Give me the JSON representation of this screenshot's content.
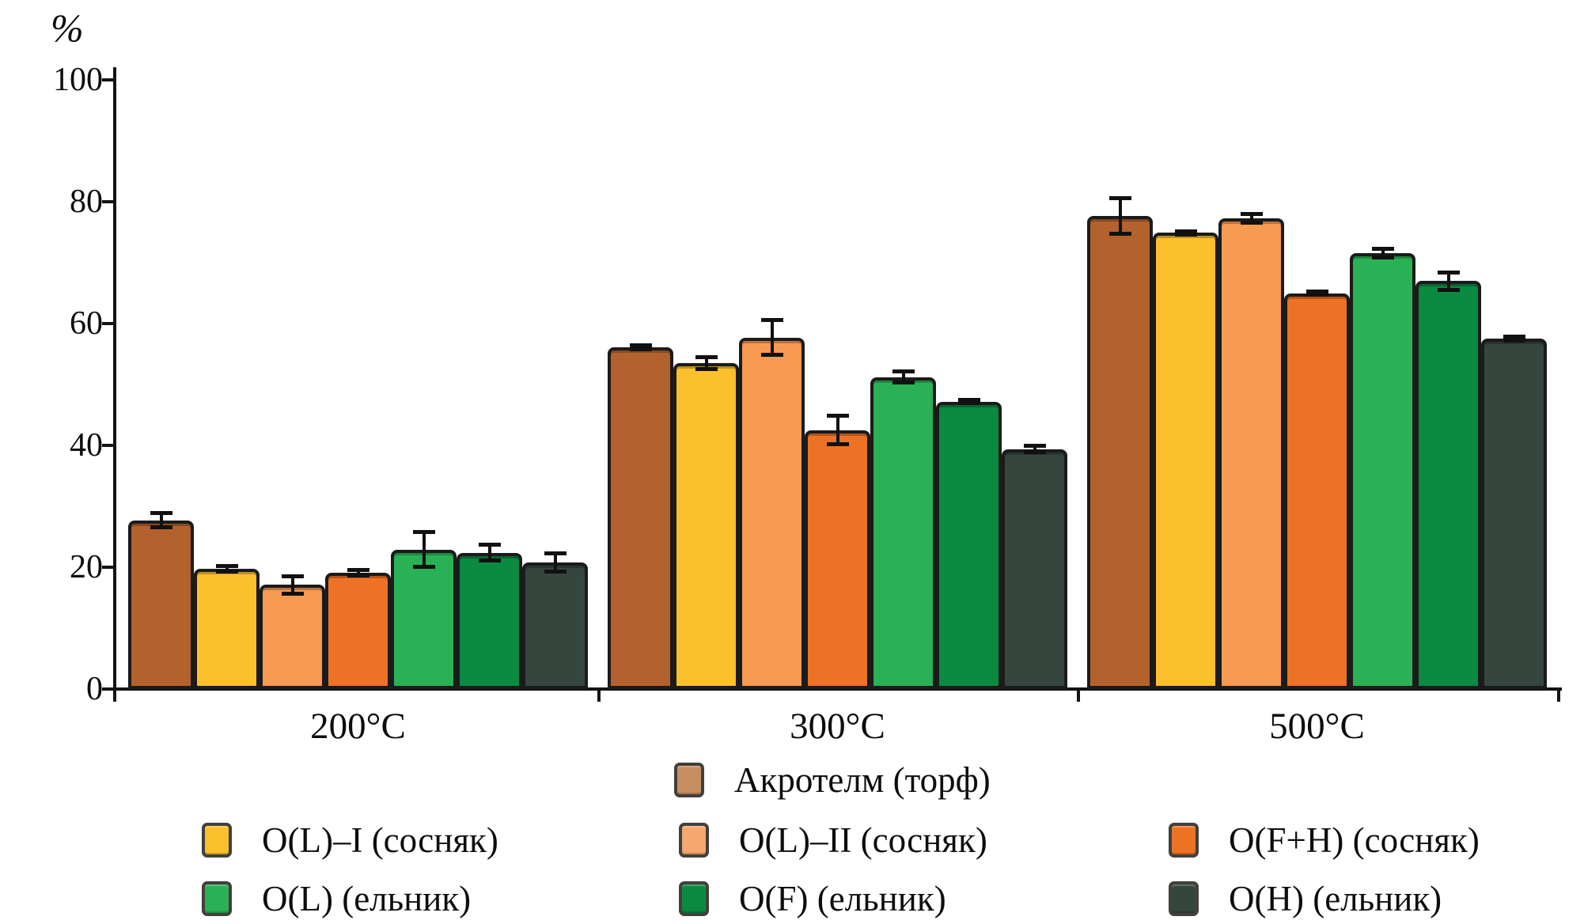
{
  "chart_data": {
    "type": "bar",
    "title": "",
    "ylabel": "%",
    "xlabel": "",
    "ylim": [
      0,
      100
    ],
    "yticks": [
      0,
      20,
      40,
      60,
      80,
      100
    ],
    "grid": false,
    "error_bars": true,
    "legend_position": "bottom",
    "categories": [
      "200°C",
      "300°C",
      "500°C"
    ],
    "series": [
      {
        "name": "Акротелм (торф)",
        "color": "#b4622d",
        "legend_color": "#c88e63",
        "values": [
          27.7,
          56.1,
          77.7
        ],
        "errors": [
          1.2,
          0.4,
          3.0
        ]
      },
      {
        "name": "O(L)–I (сосняк)",
        "color": "#fcc02c",
        "legend_color": "#fcc02c",
        "values": [
          19.7,
          53.5,
          74.9
        ],
        "errors": [
          0.5,
          1.0,
          0.3
        ]
      },
      {
        "name": "O(L)–II (сосняк)",
        "color": "#f79a52",
        "legend_color": "#f4a86e",
        "values": [
          17.1,
          57.7,
          77.3
        ],
        "errors": [
          1.5,
          2.9,
          0.8
        ]
      },
      {
        "name": "O(F+H) (сосняк)",
        "color": "#ee7226",
        "legend_color": "#ee7226",
        "values": [
          19.1,
          42.5,
          65.0
        ],
        "errors": [
          0.5,
          2.4,
          0.3
        ]
      },
      {
        "name": "O(L) (ельник)",
        "color": "#2bb155",
        "legend_color": "#2bb155",
        "values": [
          22.9,
          51.2,
          71.6
        ],
        "errors": [
          2.9,
          1.0,
          0.8
        ]
      },
      {
        "name": "O(F) (ельник)",
        "color": "#0b8a41",
        "legend_color": "#0b8a41",
        "values": [
          22.4,
          47.2,
          67.0
        ],
        "errors": [
          1.4,
          0.3,
          1.5
        ]
      },
      {
        "name": "O(H) (ельник)",
        "color": "#35463f",
        "legend_color": "#35463f",
        "values": [
          20.8,
          39.4,
          57.5
        ],
        "errors": [
          1.6,
          0.6,
          0.4
        ]
      }
    ]
  }
}
